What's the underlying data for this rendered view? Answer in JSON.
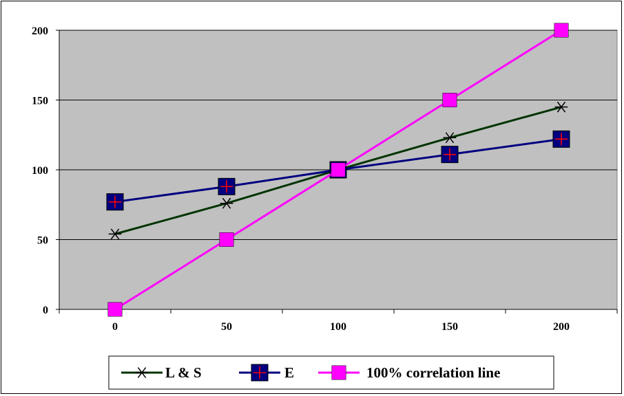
{
  "chart_data": {
    "type": "line",
    "title": "",
    "xlabel": "",
    "ylabel": "",
    "x": [
      0,
      50,
      100,
      150,
      200
    ],
    "xlim": [
      -25,
      225
    ],
    "ylim": [
      0,
      200
    ],
    "x_ticks": [
      0,
      50,
      100,
      150,
      200
    ],
    "y_ticks": [
      0,
      50,
      100,
      150,
      200
    ],
    "grid": "horizontal",
    "legend_position": "bottom",
    "plot_background": "#c0c0c0",
    "series": [
      {
        "name": "L & S",
        "values": [
          54,
          76,
          100,
          123,
          145
        ],
        "color": "#003300",
        "marker": "asterisk"
      },
      {
        "name": "E",
        "values": [
          77,
          88,
          100,
          111,
          122
        ],
        "color": "#000080",
        "marker": "square-plus"
      },
      {
        "name": "100% correlation line",
        "values": [
          0,
          50,
          100,
          150,
          200
        ],
        "color": "#ff00ff",
        "marker": "square"
      }
    ]
  }
}
